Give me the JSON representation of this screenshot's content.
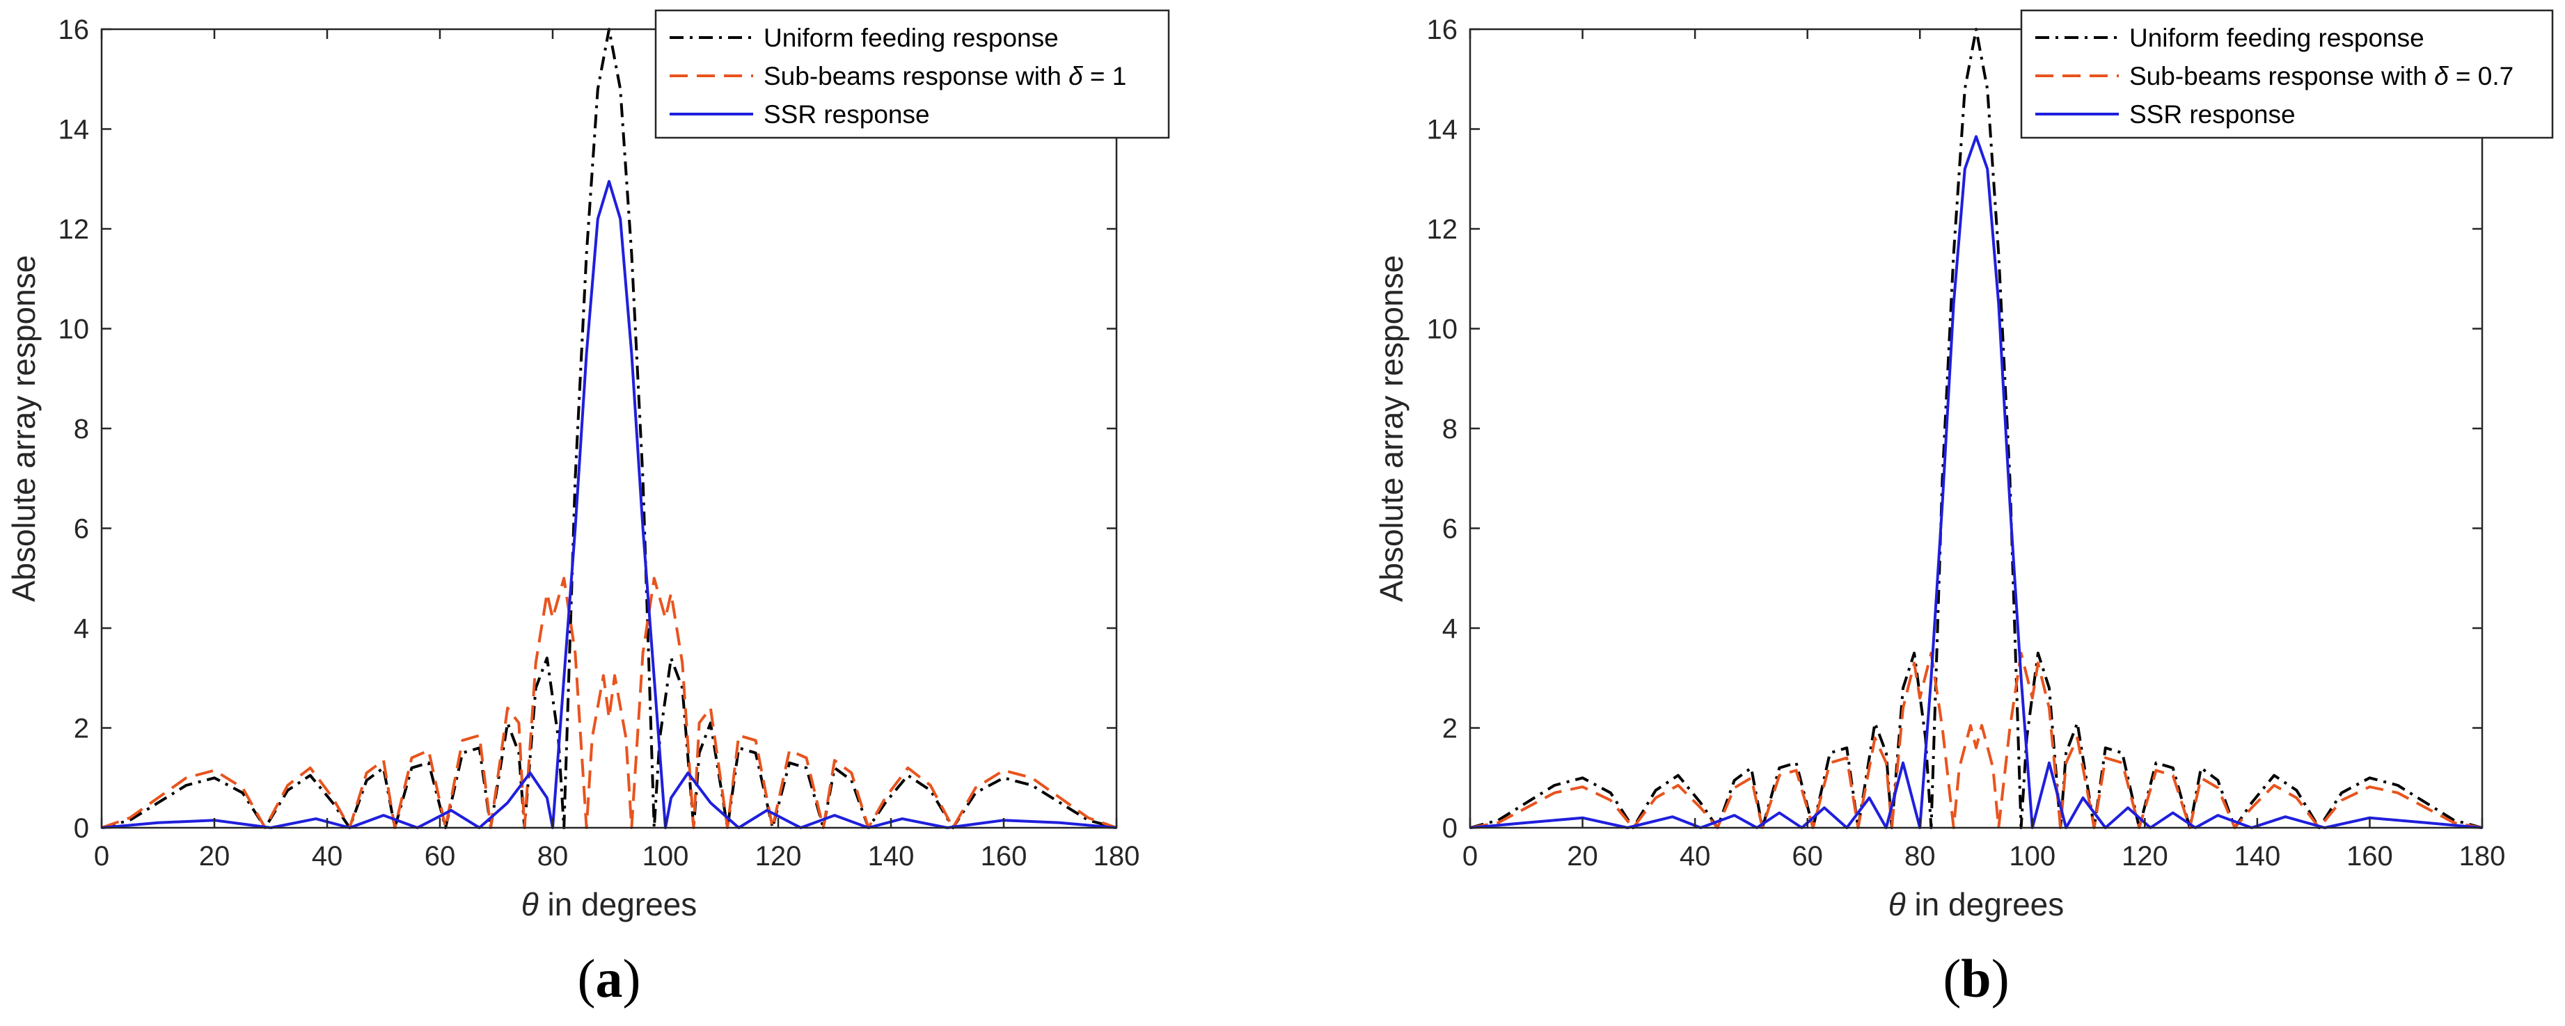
{
  "chart_data": [
    {
      "type": "line",
      "panel_label": "(a)",
      "panel_letter": "a",
      "xlabel_symbol": "θ",
      "xlabel_rest": " in degrees",
      "ylabel": "Absolute array response",
      "xlim": [
        0,
        180
      ],
      "ylim": [
        0,
        16
      ],
      "xticks": [
        0,
        20,
        40,
        60,
        80,
        100,
        120,
        140,
        160,
        180
      ],
      "yticks": [
        0,
        2,
        4,
        6,
        8,
        10,
        12,
        14,
        16
      ],
      "grid": false,
      "legend_position": "top-right",
      "series": [
        {
          "name": "Uniform feeding response",
          "color": "#000000",
          "style": "dashdot",
          "x": [
            0,
            5,
            10,
            15,
            20,
            25,
            29,
            33,
            37,
            41,
            44,
            47,
            50,
            52,
            55,
            58,
            61,
            64,
            67,
            69,
            72,
            74,
            75,
            77,
            79,
            81,
            82,
            84,
            86,
            88,
            90,
            92,
            94,
            96,
            98,
            99,
            101,
            103,
            105,
            106,
            108,
            111,
            113,
            116,
            119,
            122,
            125,
            128,
            130,
            133,
            136,
            139,
            143,
            147,
            151,
            155,
            160,
            165,
            170,
            175,
            180
          ],
          "values": [
            0,
            0.15,
            0.5,
            0.85,
            1.0,
            0.7,
            0,
            0.75,
            1.05,
            0.5,
            0,
            0.95,
            1.2,
            0,
            1.2,
            1.3,
            0,
            1.5,
            1.6,
            0,
            2.1,
            1.5,
            0,
            2.8,
            3.4,
            1.8,
            0,
            7.0,
            11.5,
            14.8,
            16.0,
            14.8,
            11.5,
            7.0,
            0,
            1.8,
            3.4,
            2.8,
            0,
            1.5,
            2.1,
            0,
            1.6,
            1.5,
            0,
            1.3,
            1.2,
            0,
            1.2,
            0.95,
            0,
            0.5,
            1.05,
            0.75,
            0,
            0.7,
            1.0,
            0.85,
            0.5,
            0.15,
            0
          ]
        },
        {
          "name": "Sub-beams response with δ = 1",
          "color": "#e8541e",
          "style": "dashed",
          "x": [
            0,
            5,
            10,
            15,
            20,
            25,
            29,
            33,
            37,
            41,
            44,
            47,
            50,
            52,
            55,
            58,
            61,
            64,
            67,
            69,
            72,
            74,
            75,
            77,
            79,
            80,
            82,
            84,
            86,
            87,
            89,
            90,
            91,
            93,
            94,
            96,
            98,
            100,
            101,
            103,
            105,
            106,
            108,
            111,
            113,
            116,
            119,
            122,
            125,
            128,
            130,
            133,
            136,
            139,
            143,
            147,
            151,
            155,
            160,
            165,
            170,
            175,
            180
          ],
          "values": [
            0,
            0.2,
            0.6,
            1.0,
            1.15,
            0.8,
            0,
            0.85,
            1.2,
            0.6,
            0,
            1.1,
            1.35,
            0,
            1.4,
            1.55,
            0,
            1.75,
            1.85,
            0,
            2.4,
            2.1,
            0,
            3.3,
            4.7,
            4.2,
            5.0,
            3.5,
            0,
            1.8,
            3.05,
            2.2,
            3.05,
            1.8,
            0,
            3.5,
            5.0,
            4.2,
            4.7,
            3.3,
            0,
            2.1,
            2.4,
            0,
            1.85,
            1.75,
            0,
            1.55,
            1.4,
            0,
            1.35,
            1.1,
            0,
            0.6,
            1.2,
            0.85,
            0,
            0.8,
            1.15,
            1.0,
            0.6,
            0.2,
            0
          ]
        },
        {
          "name": "SSR response",
          "color": "#1f1fdd",
          "style": "solid",
          "x": [
            0,
            10,
            20,
            30,
            38,
            44,
            50,
            56,
            62,
            67,
            72,
            76,
            79,
            80,
            82,
            84,
            86,
            88,
            90,
            92,
            94,
            96,
            98,
            100,
            101,
            104,
            108,
            113,
            118,
            124,
            130,
            136,
            142,
            150,
            160,
            170,
            180
          ],
          "values": [
            0,
            0.1,
            0.15,
            0,
            0.18,
            0,
            0.25,
            0,
            0.35,
            0,
            0.5,
            1.1,
            0.6,
            0,
            3.0,
            6.0,
            9.5,
            12.2,
            12.95,
            12.2,
            9.5,
            6.0,
            3.0,
            0,
            0.6,
            1.1,
            0.5,
            0,
            0.35,
            0,
            0.25,
            0,
            0.18,
            0,
            0.15,
            0.1,
            0
          ]
        }
      ]
    },
    {
      "type": "line",
      "panel_label": "(b)",
      "panel_letter": "b",
      "xlabel_symbol": "θ",
      "xlabel_rest": " in degrees",
      "ylabel": "Absolute array response",
      "xlim": [
        0,
        180
      ],
      "ylim": [
        0,
        16
      ],
      "xticks": [
        0,
        20,
        40,
        60,
        80,
        100,
        120,
        140,
        160,
        180
      ],
      "yticks": [
        0,
        2,
        4,
        6,
        8,
        10,
        12,
        14,
        16
      ],
      "grid": false,
      "legend_position": "top-right",
      "series": [
        {
          "name": "Uniform feeding response",
          "color": "#000000",
          "style": "dashdot",
          "x": [
            0,
            5,
            10,
            15,
            20,
            25,
            29,
            33,
            37,
            41,
            44,
            47,
            50,
            52,
            55,
            58,
            61,
            64,
            67,
            69,
            72,
            74,
            75,
            77,
            79,
            81,
            82,
            84,
            86,
            88,
            90,
            92,
            94,
            96,
            98,
            99,
            101,
            103,
            105,
            106,
            108,
            111,
            113,
            116,
            119,
            122,
            125,
            128,
            130,
            133,
            136,
            139,
            143,
            147,
            151,
            155,
            160,
            165,
            170,
            175,
            180
          ],
          "values": [
            0,
            0.15,
            0.5,
            0.85,
            1.0,
            0.7,
            0,
            0.75,
            1.05,
            0.5,
            0,
            0.95,
            1.2,
            0,
            1.2,
            1.3,
            0,
            1.5,
            1.6,
            0,
            2.1,
            1.5,
            0,
            2.8,
            3.5,
            1.8,
            0,
            7.0,
            11.5,
            14.8,
            16.0,
            14.8,
            11.5,
            7.0,
            0,
            1.8,
            3.5,
            2.8,
            0,
            1.5,
            2.1,
            0,
            1.6,
            1.5,
            0,
            1.3,
            1.2,
            0,
            1.2,
            0.95,
            0,
            0.5,
            1.05,
            0.75,
            0,
            0.7,
            1.0,
            0.85,
            0.5,
            0.15,
            0
          ]
        },
        {
          "name": "Sub-beams response with δ = 0.7",
          "color": "#e8541e",
          "style": "dashed",
          "x": [
            0,
            5,
            10,
            15,
            20,
            25,
            29,
            33,
            37,
            41,
            44,
            47,
            50,
            52,
            55,
            58,
            61,
            64,
            67,
            69,
            72,
            74,
            75,
            77,
            79,
            80,
            82,
            84,
            86,
            87,
            89,
            90,
            91,
            93,
            94,
            96,
            98,
            100,
            101,
            103,
            105,
            106,
            108,
            111,
            113,
            116,
            119,
            122,
            125,
            128,
            130,
            133,
            136,
            139,
            143,
            147,
            151,
            155,
            160,
            165,
            170,
            175,
            180
          ],
          "values": [
            0,
            0.1,
            0.4,
            0.7,
            0.82,
            0.55,
            0,
            0.6,
            0.85,
            0.4,
            0,
            0.8,
            1.0,
            0,
            1.05,
            1.15,
            0,
            1.3,
            1.4,
            0,
            1.8,
            1.3,
            0,
            2.4,
            3.3,
            2.6,
            3.5,
            2.0,
            0,
            1.2,
            2.05,
            1.6,
            2.05,
            1.2,
            0,
            2.0,
            3.5,
            2.6,
            3.3,
            2.4,
            0,
            1.3,
            1.8,
            0,
            1.4,
            1.3,
            0,
            1.15,
            1.05,
            0,
            1.0,
            0.8,
            0,
            0.4,
            0.85,
            0.6,
            0,
            0.55,
            0.82,
            0.7,
            0.4,
            0.1,
            0
          ]
        },
        {
          "name": "SSR response",
          "color": "#1f1fdd",
          "style": "solid",
          "x": [
            0,
            10,
            20,
            28,
            36,
            41,
            47,
            51,
            55,
            59,
            63,
            67,
            71,
            74,
            77,
            80,
            82,
            84,
            86,
            88,
            90,
            92,
            94,
            96,
            98,
            100,
            103,
            106,
            109,
            113,
            117,
            121,
            125,
            129,
            133,
            139,
            145,
            152,
            160,
            170,
            180
          ],
          "values": [
            0,
            0.1,
            0.2,
            0,
            0.22,
            0,
            0.25,
            0,
            0.3,
            0,
            0.4,
            0,
            0.6,
            0,
            1.3,
            0,
            3.0,
            6.5,
            10.5,
            13.2,
            13.85,
            13.2,
            10.5,
            6.5,
            3.0,
            0,
            1.3,
            0,
            0.6,
            0,
            0.4,
            0,
            0.3,
            0,
            0.25,
            0,
            0.22,
            0,
            0.2,
            0.1,
            0
          ]
        }
      ]
    }
  ]
}
